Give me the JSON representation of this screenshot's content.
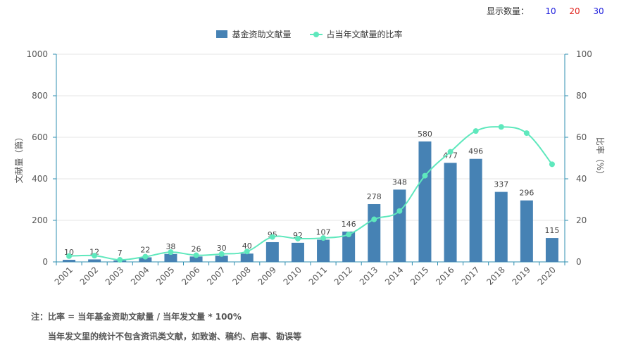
{
  "controls": {
    "display_count_label": "显示数量：",
    "options": [
      {
        "label": "10",
        "color": "#1a1adc"
      },
      {
        "label": "20",
        "color": "#e0201a"
      },
      {
        "label": "30",
        "color": "#1a1adc"
      }
    ]
  },
  "colors": {
    "bar": "#4682b4",
    "line": "#5fe8bd",
    "axis": "#2f8fb0",
    "grid": "#e6e6e6",
    "tick_text": "#555555",
    "label_text": "#444444"
  },
  "notes": {
    "line1": "注：比率 = 当年基金资助文献量 / 当年发文量 * 100%",
    "line2": "当年发文里的统计不包含资讯类文献，如致谢、稿约、启事、勘误等"
  },
  "chart_data": {
    "type": "bar",
    "categories": [
      "2001",
      "2002",
      "2003",
      "2004",
      "2005",
      "2006",
      "2007",
      "2008",
      "2009",
      "2010",
      "2011",
      "2012",
      "2013",
      "2014",
      "2015",
      "2016",
      "2017",
      "2018",
      "2019",
      "2020"
    ],
    "series": [
      {
        "name": "基金资助文献量",
        "type": "bar",
        "axis": "left",
        "values": [
          10,
          12,
          7,
          22,
          38,
          26,
          30,
          40,
          95,
          92,
          107,
          146,
          278,
          348,
          580,
          477,
          496,
          337,
          296,
          115
        ],
        "data_labels": true
      },
      {
        "name": "占当年文献量的比率",
        "type": "line",
        "axis": "right",
        "values": [
          2.8,
          3.0,
          1.0,
          2.5,
          4.7,
          3.2,
          3.8,
          5.0,
          12.0,
          11.2,
          11.5,
          13.2,
          20.5,
          24.5,
          41.5,
          53.0,
          63.0,
          65.0,
          62.0,
          47.0
        ]
      }
    ],
    "ylabel": "文献量（篇）",
    "y2label": "比率（%）",
    "ylim": [
      0,
      1000
    ],
    "yticks": [
      0,
      200,
      400,
      600,
      800,
      1000
    ],
    "y2lim": [
      0,
      100
    ],
    "y2ticks": [
      0,
      20,
      40,
      60,
      80,
      100
    ],
    "grid": true,
    "legend": "top-center"
  }
}
